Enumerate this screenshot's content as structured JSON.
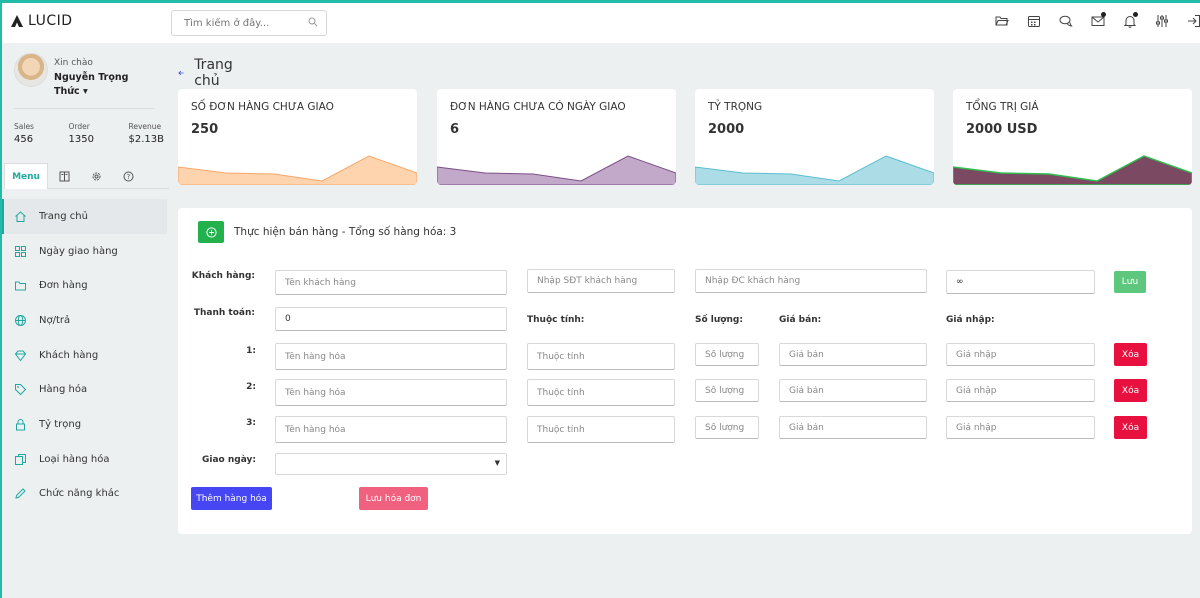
{
  "app": {
    "name": "LUCID"
  },
  "search": {
    "placeholder": "Tìm kiếm ở đây..."
  },
  "profile": {
    "greeting": "Xin chào",
    "name": "Nguyễn Trọng Thức ▾"
  },
  "stats": [
    {
      "label": "Sales",
      "value": "456"
    },
    {
      "label": "Order",
      "value": "1350"
    },
    {
      "label": "Revenue",
      "value": "$2.13B"
    }
  ],
  "sidebar_tabs": {
    "menu": "Menu"
  },
  "nav": [
    {
      "label": "Trang chủ",
      "icon": "home-icon"
    },
    {
      "label": "Ngày giao hàng",
      "icon": "grid-icon"
    },
    {
      "label": "Đơn hàng",
      "icon": "folder-icon"
    },
    {
      "label": "Nợ/trả",
      "icon": "globe-icon"
    },
    {
      "label": "Khách hàng",
      "icon": "diamond-icon"
    },
    {
      "label": "Hàng hóa",
      "icon": "tag-icon"
    },
    {
      "label": "Tỷ trọng",
      "icon": "lock-icon"
    },
    {
      "label": "Loại hàng hóa",
      "icon": "copy-icon"
    },
    {
      "label": "Chức năng khác",
      "icon": "pencil-icon"
    }
  ],
  "page": {
    "title": "Trang chủ"
  },
  "cards": [
    {
      "title": "SỐ ĐƠN HÀNG CHƯA GIAO",
      "value": "250",
      "fill": "#fdd4ad",
      "stroke": "#f8a66a"
    },
    {
      "title": "ĐƠN HÀNG CHƯA CÓ NGÀY GIAO",
      "value": "6",
      "fill": "#c3a9c9",
      "stroke": "#7b4f87"
    },
    {
      "title": "TỶ TRỌNG",
      "value": "2000",
      "fill": "#acdde6",
      "stroke": "#5bbdd0"
    },
    {
      "title": "TỔNG TRỊ GIÁ",
      "value": "2000 USD",
      "fill": "#7b4a62",
      "stroke": "#2fbf4f"
    }
  ],
  "form": {
    "title": "Thực hiện bán hàng - Tổng số hàng hóa: 3",
    "customer_label": "Khách hàng:",
    "customer_name_placeholder": "Tên khách hàng",
    "customer_phone_placeholder": "Nhập SĐT khách hàng",
    "customer_address_placeholder": "Nhập ĐC khách hàng",
    "infinity_value": "∞",
    "save_label": "Lưu",
    "payment_label": "Thanh toán:",
    "payment_value": "0",
    "col_attr": "Thuộc tính:",
    "col_qty": "Số lượng:",
    "col_price": "Giá bán:",
    "col_import": "Giá nhập:",
    "rows": [
      {
        "index": "1:",
        "item_placeholder": "Tên hàng hóa",
        "attr_placeholder": "Thuộc tính",
        "qty_placeholder": "Số lượng",
        "price_placeholder": "Giá bán",
        "import_placeholder": "Giá nhập",
        "delete_label": "Xóa"
      },
      {
        "index": "2:",
        "item_placeholder": "Tên hàng hóa",
        "attr_placeholder": "Thuộc tính",
        "qty_placeholder": "Số lượng",
        "price_placeholder": "Giá bán",
        "import_placeholder": "Giá nhập",
        "delete_label": "Xóa"
      },
      {
        "index": "3:",
        "item_placeholder": "Tên hàng hóa",
        "attr_placeholder": "Thuộc tính",
        "qty_placeholder": "Số lượng",
        "price_placeholder": "Giá bán",
        "import_placeholder": "Giá nhập",
        "delete_label": "Xóa"
      }
    ],
    "delivery_label": "Giao ngày:",
    "add_item_label": "Thêm hàng hóa",
    "save_invoice_label": "Lưu hóa đơn"
  },
  "colors": {
    "accent": "#1fa99e",
    "add_btn": "#23b14d",
    "save_btn": "#5cc77d",
    "delete_btn": "#e8103f",
    "add_item_btn": "#4646f5",
    "save_invoice_btn": "#f0607f"
  }
}
